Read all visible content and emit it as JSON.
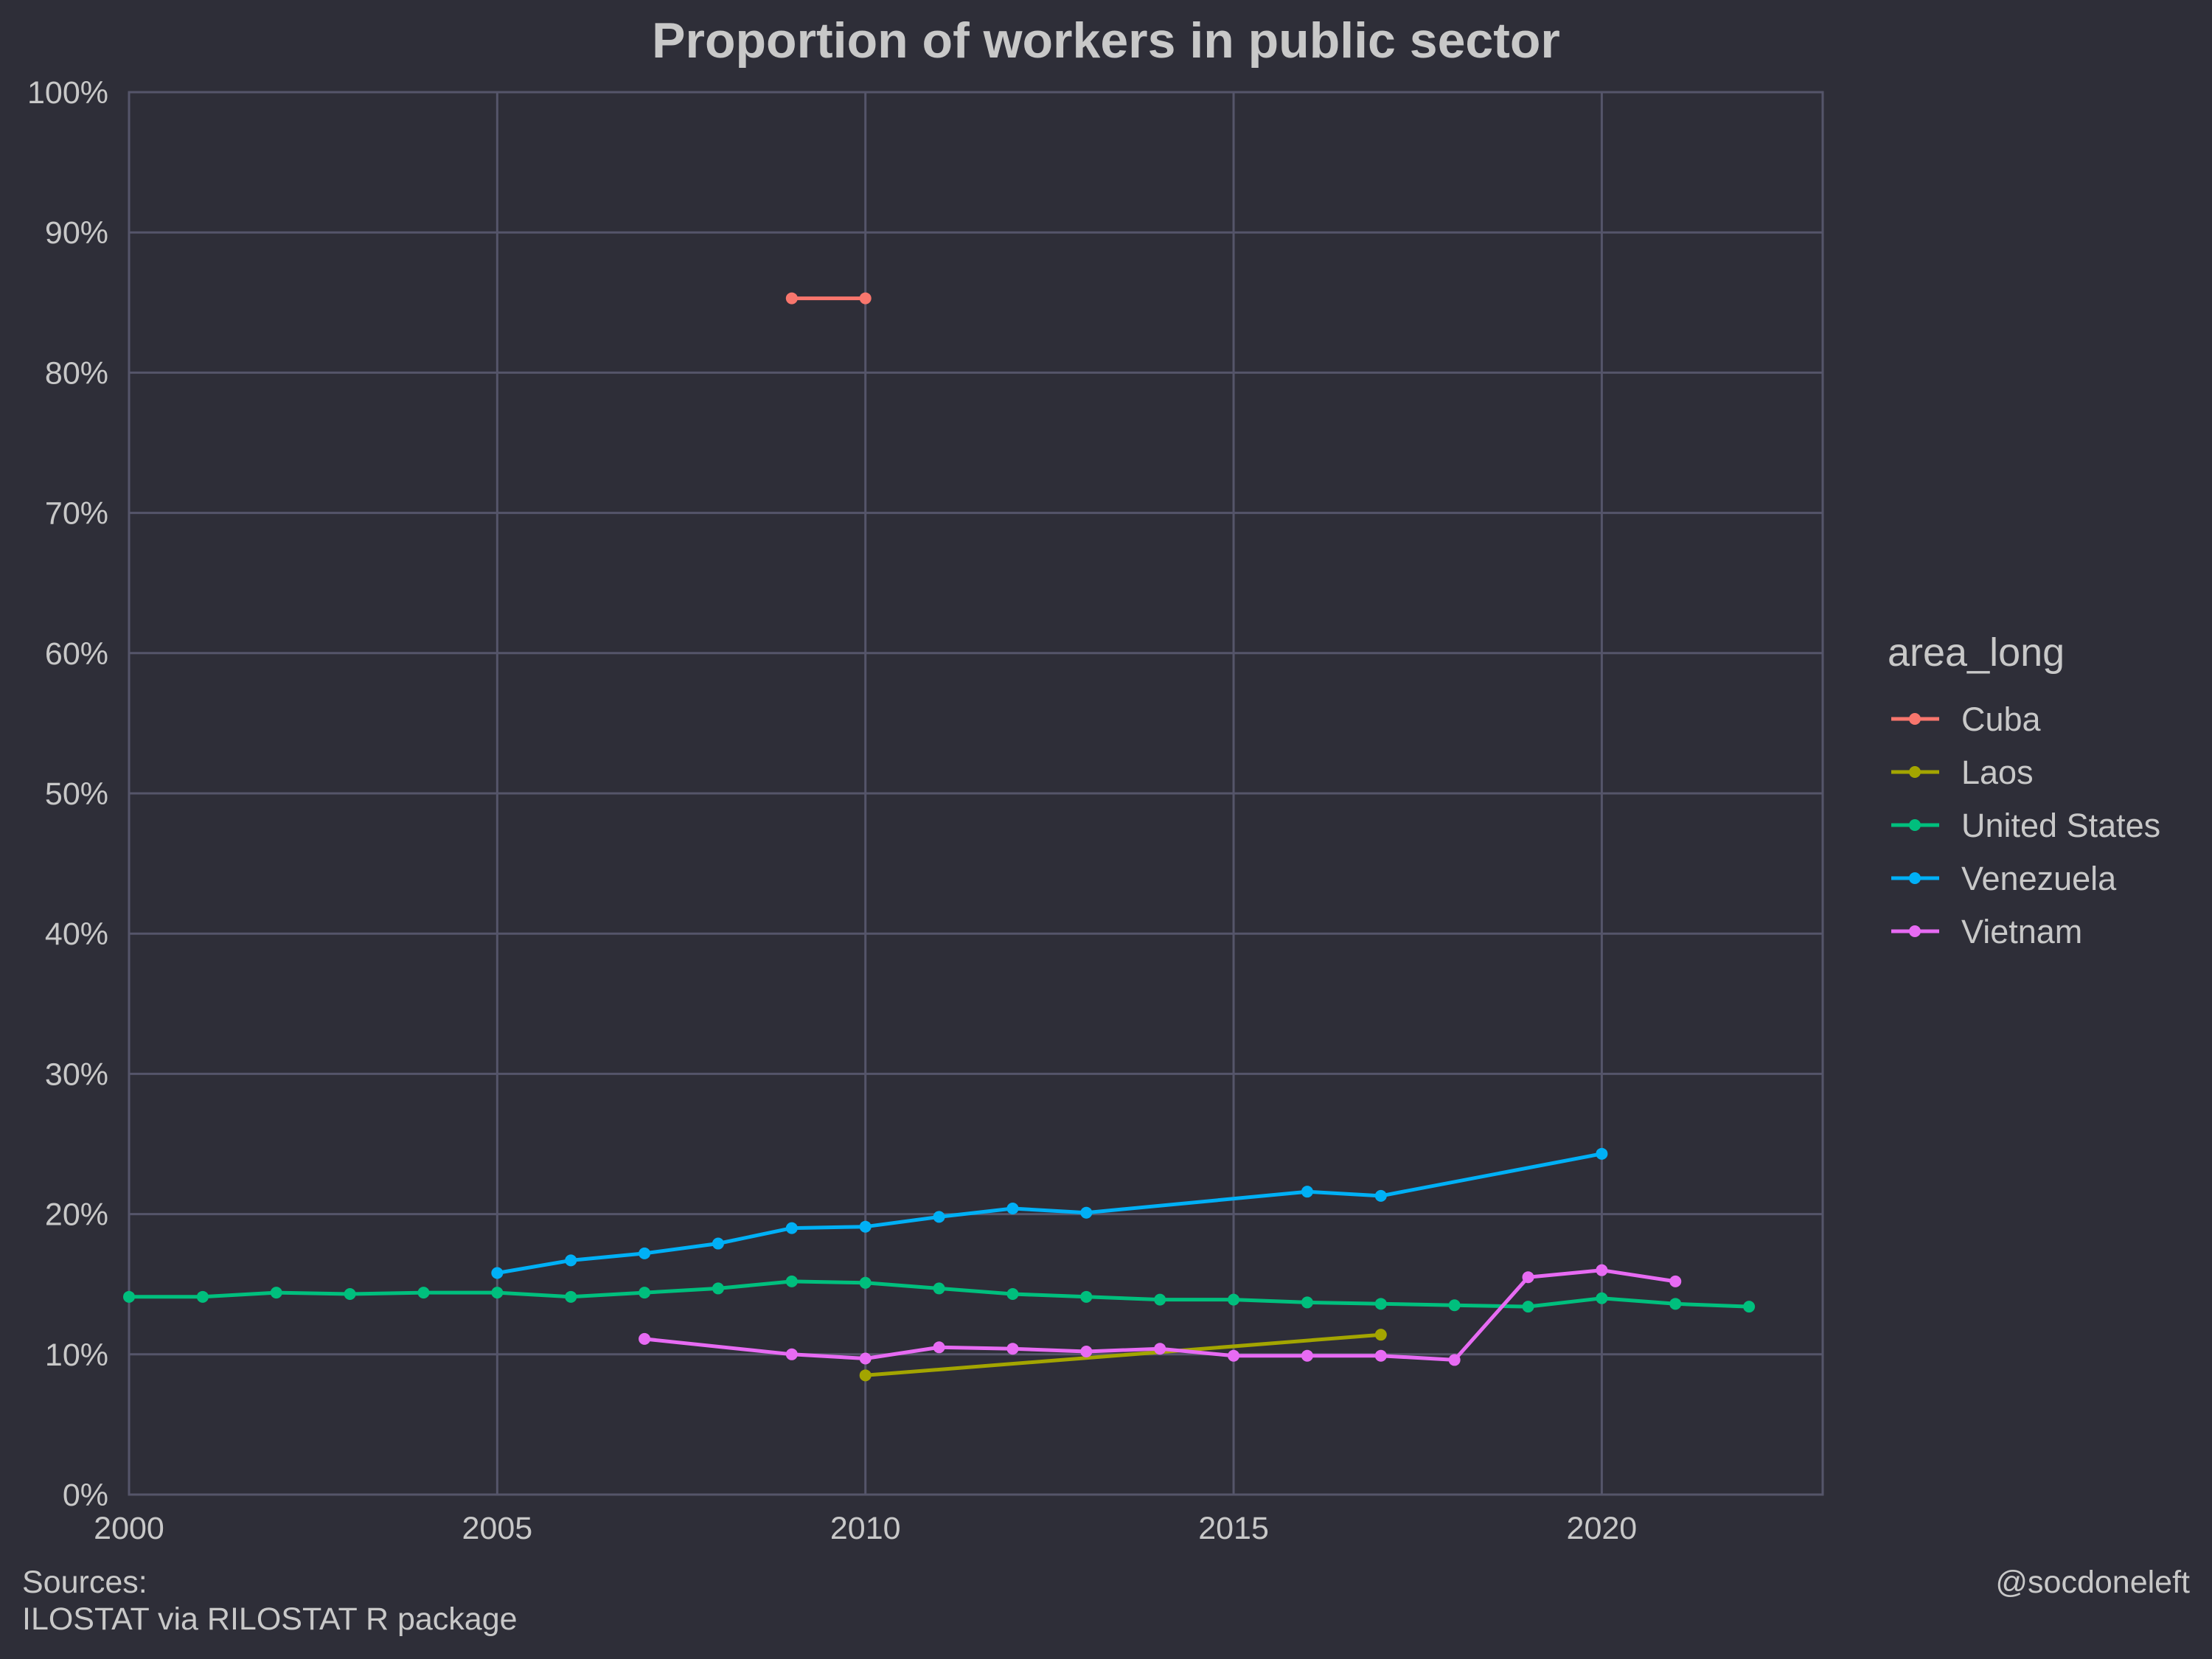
{
  "chart_data": {
    "type": "line",
    "title": "Proportion of workers in public sector",
    "xlabel": "",
    "ylabel": "",
    "xlim": [
      2000,
      2023
    ],
    "ylim": [
      0,
      100
    ],
    "x_ticks": [
      2000,
      2005,
      2010,
      2015,
      2020
    ],
    "y_ticks": [
      0,
      10,
      20,
      30,
      40,
      50,
      60,
      70,
      80,
      90,
      100
    ],
    "y_tick_labels": [
      "0%",
      "10%",
      "20%",
      "30%",
      "40%",
      "50%",
      "60%",
      "70%",
      "80%",
      "90%",
      "100%"
    ],
    "grid": true,
    "legend": {
      "title": "area_long",
      "position": "right"
    },
    "series": [
      {
        "name": "Cuba",
        "color": "#F8766D",
        "points": [
          [
            2009,
            85.3
          ],
          [
            2010,
            85.3
          ]
        ]
      },
      {
        "name": "Laos",
        "color": "#A3A500",
        "points": [
          [
            2010,
            8.5
          ],
          [
            2017,
            11.4
          ]
        ]
      },
      {
        "name": "United States",
        "color": "#00BF7D",
        "points": [
          [
            2000,
            14.1
          ],
          [
            2001,
            14.1
          ],
          [
            2002,
            14.4
          ],
          [
            2003,
            14.3
          ],
          [
            2004,
            14.4
          ],
          [
            2005,
            14.4
          ],
          [
            2006,
            14.1
          ],
          [
            2007,
            14.4
          ],
          [
            2008,
            14.7
          ],
          [
            2009,
            15.2
          ],
          [
            2010,
            15.1
          ],
          [
            2011,
            14.7
          ],
          [
            2012,
            14.3
          ],
          [
            2013,
            14.1
          ],
          [
            2014,
            13.9
          ],
          [
            2015,
            13.9
          ],
          [
            2016,
            13.7
          ],
          [
            2017,
            13.6
          ],
          [
            2018,
            13.5
          ],
          [
            2019,
            13.4
          ],
          [
            2020,
            14.0
          ],
          [
            2021,
            13.6
          ],
          [
            2022,
            13.4
          ]
        ]
      },
      {
        "name": "Venezuela",
        "color": "#00B0F6",
        "points": [
          [
            2005,
            15.8
          ],
          [
            2006,
            16.7
          ],
          [
            2007,
            17.2
          ],
          [
            2008,
            17.9
          ],
          [
            2009,
            19.0
          ],
          [
            2010,
            19.1
          ],
          [
            2011,
            19.8
          ],
          [
            2012,
            20.4
          ],
          [
            2013,
            20.1
          ],
          [
            2016,
            21.6
          ],
          [
            2017,
            21.3
          ],
          [
            2020,
            24.3
          ]
        ]
      },
      {
        "name": "Vietnam",
        "color": "#E76BF3",
        "points": [
          [
            2007,
            11.1
          ],
          [
            2009,
            10.0
          ],
          [
            2010,
            9.7
          ],
          [
            2011,
            10.5
          ],
          [
            2012,
            10.4
          ],
          [
            2013,
            10.2
          ],
          [
            2014,
            10.4
          ],
          [
            2015,
            9.9
          ],
          [
            2016,
            9.9
          ],
          [
            2017,
            9.9
          ],
          [
            2018,
            9.6
          ],
          [
            2019,
            15.5
          ],
          [
            2020,
            16.0
          ],
          [
            2021,
            15.2
          ]
        ]
      }
    ]
  },
  "caption": {
    "sources_label": "Sources:",
    "sources_text": "ILOSTAT via RILOSTAT R package",
    "credit": "@socdoneleft"
  }
}
